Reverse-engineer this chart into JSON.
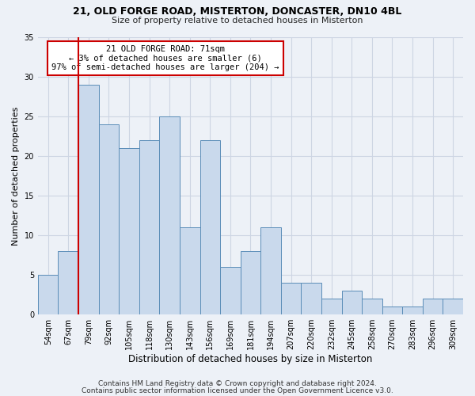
{
  "title1": "21, OLD FORGE ROAD, MISTERTON, DONCASTER, DN10 4BL",
  "title2": "Size of property relative to detached houses in Misterton",
  "xlabel": "Distribution of detached houses by size in Misterton",
  "ylabel": "Number of detached properties",
  "categories": [
    "54sqm",
    "67sqm",
    "79sqm",
    "92sqm",
    "105sqm",
    "118sqm",
    "130sqm",
    "143sqm",
    "156sqm",
    "169sqm",
    "181sqm",
    "194sqm",
    "207sqm",
    "220sqm",
    "232sqm",
    "245sqm",
    "258sqm",
    "270sqm",
    "283sqm",
    "296sqm",
    "309sqm"
  ],
  "values": [
    5,
    8,
    29,
    24,
    21,
    22,
    25,
    11,
    22,
    6,
    8,
    11,
    4,
    4,
    2,
    3,
    2,
    1,
    1,
    2,
    2
  ],
  "bar_color": "#c9d9ec",
  "bar_edge_color": "#5b8db8",
  "grid_color": "#cdd5e3",
  "background_color": "#edf1f7",
  "red_line_x": 1.5,
  "annotation_text": "21 OLD FORGE ROAD: 71sqm\n← 3% of detached houses are smaller (6)\n97% of semi-detached houses are larger (204) →",
  "annotation_box_color": "#ffffff",
  "annotation_box_edge": "#cc0000",
  "footer1": "Contains HM Land Registry data © Crown copyright and database right 2024.",
  "footer2": "Contains public sector information licensed under the Open Government Licence v3.0.",
  "ylim": [
    0,
    35
  ],
  "yticks": [
    0,
    5,
    10,
    15,
    20,
    25,
    30,
    35
  ],
  "title1_fontsize": 9,
  "title2_fontsize": 8,
  "tick_fontsize": 7,
  "ylabel_fontsize": 8,
  "xlabel_fontsize": 8.5,
  "footer_fontsize": 6.5
}
